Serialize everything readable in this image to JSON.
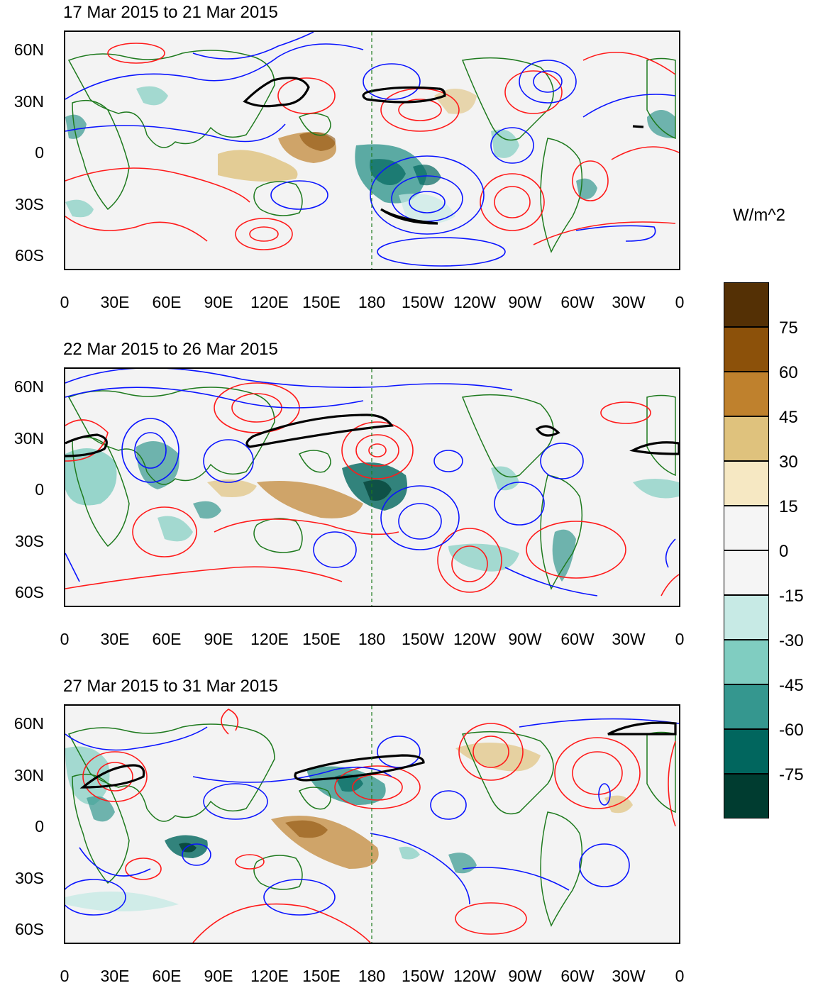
{
  "panels": [
    {
      "title": "17 Mar 2015 to 21 Mar 2015"
    },
    {
      "title": "22 Mar 2015 to 26 Mar 2015"
    },
    {
      "title": "27 Mar 2015 to 31 Mar 2015"
    }
  ],
  "lat_labels": [
    "60N",
    "30N",
    "0",
    "30S",
    "60S"
  ],
  "lon_labels": [
    "0",
    "30E",
    "60E",
    "90E",
    "120E",
    "150E",
    "180",
    "150W",
    "120W",
    "90W",
    "60W",
    "30W",
    "0"
  ],
  "colorbar": {
    "units": "W/m^2",
    "labels": [
      "75",
      "60",
      "45",
      "30",
      "15",
      "0",
      "-15",
      "-30",
      "-45",
      "-60",
      "-75"
    ],
    "colors": [
      "#543005",
      "#8c510a",
      "#bf812d",
      "#dfc27d",
      "#f6e8c3",
      "#f5f5f5",
      "#f5f5f5",
      "#c7eae5",
      "#80cdc1",
      "#35978f",
      "#01665e",
      "#003c30"
    ]
  },
  "colors": {
    "positive_contour": "#ff1a1a",
    "negative_contour": "#0a14ff",
    "jet_contour": "#000000",
    "coastline": "#1e7a1e"
  }
}
